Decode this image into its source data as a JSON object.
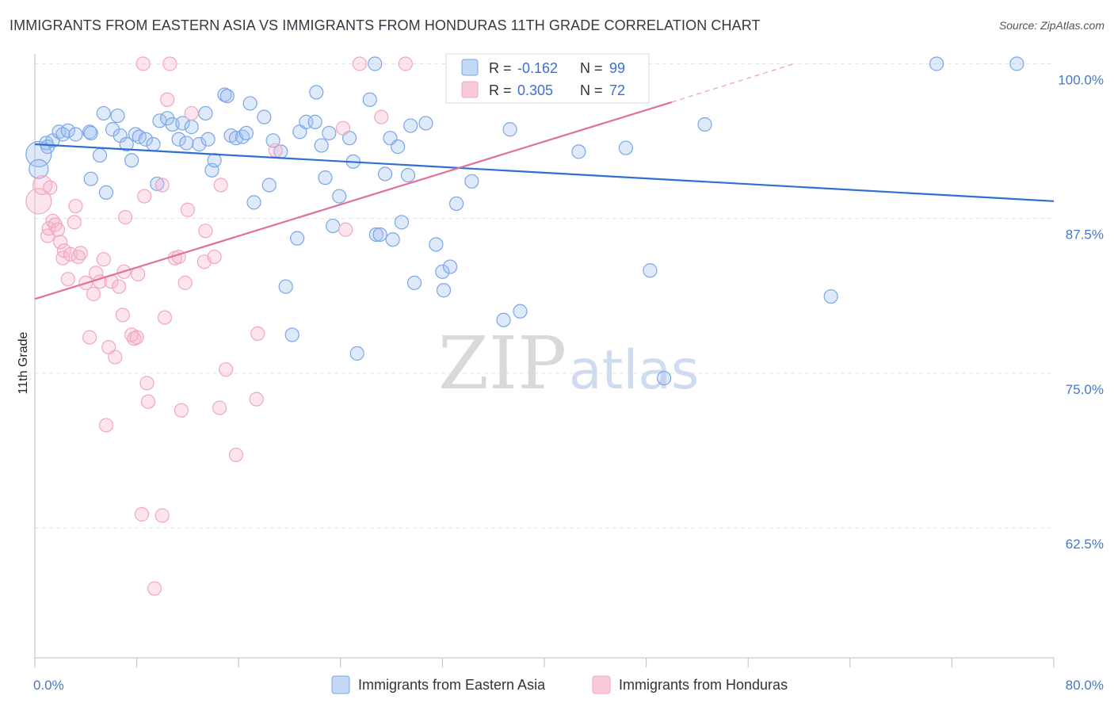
{
  "title": "IMMIGRANTS FROM EASTERN ASIA VS IMMIGRANTS FROM HONDURAS 11TH GRADE CORRELATION CHART",
  "source": "Source: ZipAtlas.com",
  "watermark": {
    "zip": "ZIP",
    "atlas": "atlas"
  },
  "legend_box": [
    {
      "r_label": "R =",
      "r_value": "-0.162",
      "n_label": "N =",
      "n_value": "99"
    },
    {
      "r_label": "R =",
      "r_value": "0.305",
      "n_label": "N =",
      "n_value": "72"
    }
  ],
  "chart_data": {
    "type": "scatter",
    "ylabel": "11th Grade",
    "xlim": [
      0,
      80
    ],
    "ylim": [
      52.0,
      100.8
    ],
    "x_tick_labels": [
      "0.0%",
      "80.0%"
    ],
    "y_ticks": [
      62.5,
      75.0,
      87.5,
      100.0
    ],
    "y_tick_labels": [
      "62.5%",
      "75.0%",
      "87.5%",
      "100.0%"
    ],
    "grid": true,
    "legend_position": "bottom",
    "series": [
      {
        "name": "Immigrants from Eastern Asia",
        "color": "#7aa6e8",
        "trend": {
          "x": [
            0,
            80
          ],
          "y": [
            93.5,
            88.9
          ]
        },
        "points": [
          [
            0.3,
            92.7
          ],
          [
            0.3,
            91.5
          ],
          [
            0.9,
            93.6
          ],
          [
            1.0,
            93.3
          ],
          [
            1.4,
            93.8
          ],
          [
            1.9,
            94.5
          ],
          [
            2.2,
            94.3
          ],
          [
            2.6,
            94.6
          ],
          [
            3.2,
            94.3
          ],
          [
            4.3,
            94.5
          ],
          [
            4.4,
            94.4
          ],
          [
            4.4,
            90.7
          ],
          [
            5.1,
            92.6
          ],
          [
            5.4,
            96.0
          ],
          [
            5.6,
            89.6
          ],
          [
            6.1,
            94.7
          ],
          [
            6.5,
            95.8
          ],
          [
            6.7,
            94.2
          ],
          [
            7.2,
            93.5
          ],
          [
            7.6,
            92.2
          ],
          [
            7.9,
            94.3
          ],
          [
            8.2,
            94.1
          ],
          [
            8.7,
            93.9
          ],
          [
            9.3,
            93.5
          ],
          [
            9.6,
            90.3
          ],
          [
            9.8,
            95.4
          ],
          [
            10.4,
            95.6
          ],
          [
            10.8,
            95.1
          ],
          [
            11.3,
            93.9
          ],
          [
            11.6,
            95.2
          ],
          [
            11.9,
            93.6
          ],
          [
            12.3,
            94.9
          ],
          [
            12.9,
            93.5
          ],
          [
            13.4,
            96.0
          ],
          [
            13.6,
            93.9
          ],
          [
            13.9,
            91.4
          ],
          [
            14.1,
            92.2
          ],
          [
            14.9,
            97.5
          ],
          [
            15.1,
            97.4
          ],
          [
            15.4,
            94.2
          ],
          [
            15.8,
            94.0
          ],
          [
            16.3,
            94.1
          ],
          [
            16.6,
            94.4
          ],
          [
            16.9,
            96.8
          ],
          [
            17.2,
            88.8
          ],
          [
            18.0,
            95.7
          ],
          [
            18.4,
            90.2
          ],
          [
            18.7,
            93.8
          ],
          [
            19.3,
            92.9
          ],
          [
            19.7,
            82.0
          ],
          [
            20.2,
            78.1
          ],
          [
            20.6,
            85.9
          ],
          [
            20.8,
            94.5
          ],
          [
            21.3,
            95.3
          ],
          [
            22.0,
            95.3
          ],
          [
            22.1,
            97.7
          ],
          [
            22.5,
            93.4
          ],
          [
            22.8,
            90.8
          ],
          [
            23.1,
            94.4
          ],
          [
            23.4,
            86.9
          ],
          [
            23.9,
            89.3
          ],
          [
            24.7,
            94.0
          ],
          [
            25.0,
            92.1
          ],
          [
            25.3,
            76.6
          ],
          [
            26.3,
            97.1
          ],
          [
            26.7,
            100.0
          ],
          [
            26.8,
            86.2
          ],
          [
            27.1,
            86.2
          ],
          [
            27.5,
            91.1
          ],
          [
            27.9,
            94.0
          ],
          [
            28.1,
            85.8
          ],
          [
            28.5,
            93.3
          ],
          [
            28.8,
            87.2
          ],
          [
            29.3,
            91.0
          ],
          [
            29.5,
            95.0
          ],
          [
            29.8,
            82.3
          ],
          [
            30.7,
            95.2
          ],
          [
            31.5,
            85.4
          ],
          [
            32.0,
            83.2
          ],
          [
            32.1,
            81.7
          ],
          [
            32.6,
            83.6
          ],
          [
            33.1,
            88.7
          ],
          [
            34.3,
            90.5
          ],
          [
            36.8,
            79.3
          ],
          [
            37.3,
            94.7
          ],
          [
            38.1,
            80.0
          ],
          [
            38.4,
            100.0
          ],
          [
            42.5,
            100.0
          ],
          [
            42.7,
            92.9
          ],
          [
            43.0,
            100.0
          ],
          [
            46.4,
            93.2
          ],
          [
            48.3,
            83.3
          ],
          [
            49.4,
            74.6
          ],
          [
            52.6,
            95.1
          ],
          [
            62.5,
            81.2
          ],
          [
            70.8,
            100.0
          ],
          [
            77.1,
            100.0
          ]
        ]
      },
      {
        "name": "Immigrants from Honduras",
        "color": "#f2a6c0",
        "trend": {
          "x": [
            0,
            50
          ],
          "y": [
            81.0,
            96.9
          ]
        },
        "trend_dashed_ext": {
          "x": [
            50,
            59.6
          ],
          "y": [
            96.9,
            100.0
          ]
        },
        "points": [
          [
            0.3,
            88.9
          ],
          [
            0.6,
            90.2
          ],
          [
            1.0,
            86.1
          ],
          [
            1.1,
            86.7
          ],
          [
            1.2,
            90.0
          ],
          [
            1.4,
            87.3
          ],
          [
            1.6,
            87.0
          ],
          [
            1.8,
            86.6
          ],
          [
            2.0,
            85.6
          ],
          [
            2.2,
            84.3
          ],
          [
            2.3,
            84.9
          ],
          [
            2.6,
            82.6
          ],
          [
            2.8,
            84.6
          ],
          [
            3.1,
            87.2
          ],
          [
            3.2,
            88.5
          ],
          [
            3.4,
            84.4
          ],
          [
            3.6,
            84.7
          ],
          [
            4.0,
            82.3
          ],
          [
            4.3,
            77.9
          ],
          [
            4.6,
            81.4
          ],
          [
            4.8,
            83.1
          ],
          [
            5.1,
            82.4
          ],
          [
            5.4,
            84.2
          ],
          [
            5.6,
            70.8
          ],
          [
            5.8,
            77.1
          ],
          [
            6.0,
            82.4
          ],
          [
            6.3,
            76.3
          ],
          [
            6.6,
            82.0
          ],
          [
            6.9,
            79.7
          ],
          [
            7.0,
            83.2
          ],
          [
            7.1,
            87.6
          ],
          [
            7.6,
            78.1
          ],
          [
            7.8,
            77.8
          ],
          [
            8.0,
            77.9
          ],
          [
            8.1,
            83.0
          ],
          [
            8.4,
            63.6
          ],
          [
            8.5,
            100.0
          ],
          [
            8.6,
            89.3
          ],
          [
            8.8,
            74.2
          ],
          [
            8.9,
            72.7
          ],
          [
            9.4,
            57.6
          ],
          [
            10.0,
            90.2
          ],
          [
            10.0,
            63.5
          ],
          [
            10.2,
            79.5
          ],
          [
            10.4,
            97.1
          ],
          [
            10.6,
            100.0
          ],
          [
            11.0,
            84.3
          ],
          [
            11.3,
            84.4
          ],
          [
            11.5,
            72.0
          ],
          [
            11.8,
            82.3
          ],
          [
            12.0,
            88.2
          ],
          [
            12.3,
            96.0
          ],
          [
            13.3,
            84.0
          ],
          [
            13.4,
            86.5
          ],
          [
            14.1,
            84.4
          ],
          [
            14.5,
            72.2
          ],
          [
            14.6,
            90.2
          ],
          [
            15.0,
            75.3
          ],
          [
            15.8,
            68.4
          ],
          [
            17.4,
            72.9
          ],
          [
            17.5,
            78.2
          ],
          [
            18.9,
            93.0
          ],
          [
            24.2,
            94.8
          ],
          [
            24.4,
            86.6
          ],
          [
            25.5,
            100.0
          ],
          [
            27.2,
            95.7
          ],
          [
            29.1,
            100.0
          ],
          [
            35.2,
            100.0
          ]
        ]
      }
    ]
  }
}
